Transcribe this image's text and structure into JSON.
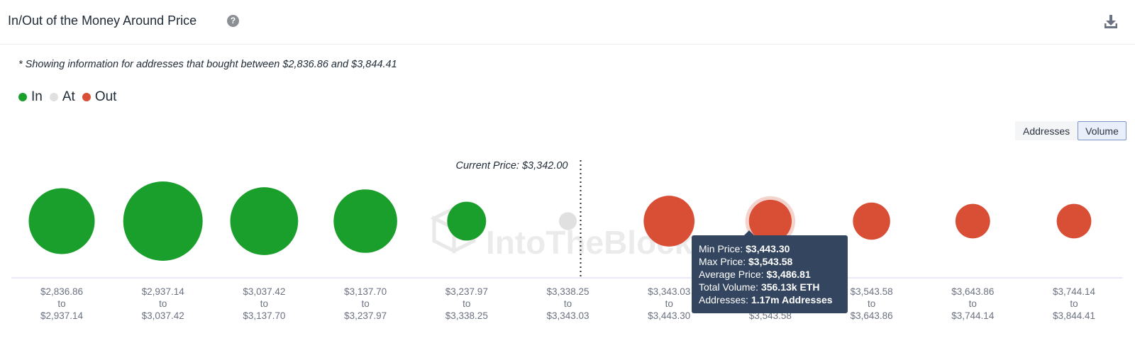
{
  "header": {
    "title": "In/Out of the Money Around Price",
    "help_glyph": "?",
    "download_icon": "download-icon"
  },
  "info_note": "* Showing information for addresses that bought between $2,836.86 and $3,844.41",
  "legend": [
    {
      "label": "In",
      "color": "#1a9e2c"
    },
    {
      "label": "At",
      "color": "#e0e0e0"
    },
    {
      "label": "Out",
      "color": "#d94f36"
    }
  ],
  "toggle": {
    "addresses_label": "Addresses",
    "volume_label": "Volume",
    "active": "Volume"
  },
  "tooltip": {
    "min_label": "Min Price:",
    "min_value": "$3,443.30",
    "max_label": "Max Price:",
    "max_value": "$3,543.58",
    "avg_label": "Average Price:",
    "avg_value": "$3,486.81",
    "vol_label": "Total Volume:",
    "vol_value": "356.13k ETH",
    "addr_label": "Addresses:",
    "addr_value": "1.17m Addresses"
  },
  "watermark": "IntoTheBlock",
  "chart_data": {
    "type": "scatter",
    "title": "In/Out of the Money Around Price",
    "current_price_label": "Current Price: $3,342.00",
    "current_price_after_index": 5,
    "size_metric": "Volume",
    "ranges": [
      {
        "from": "$2,836.86",
        "to_word": "to",
        "to": "$2,937.14",
        "status": "In",
        "relative_volume": 0.69
      },
      {
        "from": "$2,937.14",
        "to_word": "to",
        "to": "$3,037.42",
        "status": "In",
        "relative_volume": 1.0
      },
      {
        "from": "$3,037.42",
        "to_word": "to",
        "to": "$3,137.70",
        "status": "In",
        "relative_volume": 0.73
      },
      {
        "from": "$3,137.70",
        "to_word": "to",
        "to": "$3,237.97",
        "status": "In",
        "relative_volume": 0.64
      },
      {
        "from": "$3,237.97",
        "to_word": "to",
        "to": "$3,338.25",
        "status": "In",
        "relative_volume": 0.24
      },
      {
        "from": "$3,338.25",
        "to_word": "to",
        "to": "$3,343.03",
        "status": "At",
        "relative_volume": 0.05
      },
      {
        "from": "$3,343.03",
        "to_word": "to",
        "to": "$3,443.30",
        "status": "Out",
        "relative_volume": 0.41
      },
      {
        "from": "$3,443.30",
        "to_word": "to",
        "to": "$3,543.58",
        "status": "Out",
        "relative_volume": 0.29,
        "highlighted": true
      },
      {
        "from": "$3,543.58",
        "to_word": "to",
        "to": "$3,643.86",
        "status": "Out",
        "relative_volume": 0.22
      },
      {
        "from": "$3,643.86",
        "to_word": "to",
        "to": "$3,744.14",
        "status": "Out",
        "relative_volume": 0.19
      },
      {
        "from": "$3,744.14",
        "to_word": "to",
        "to": "$3,844.41",
        "status": "Out",
        "relative_volume": 0.19
      }
    ]
  }
}
